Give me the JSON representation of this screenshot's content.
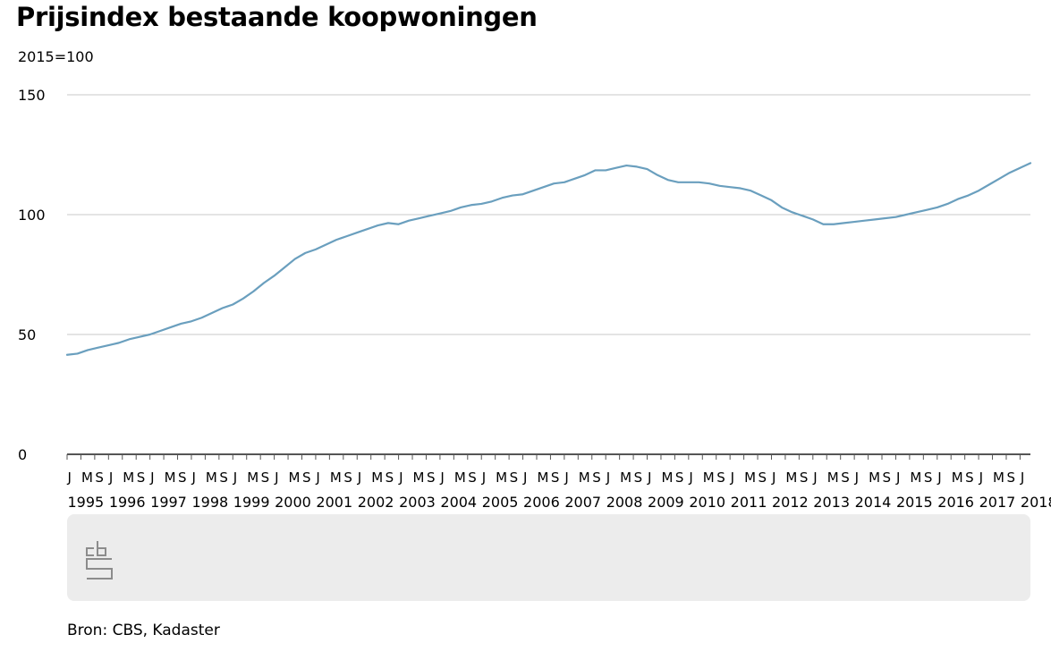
{
  "chart_data": {
    "type": "line",
    "title": "Prijsindex bestaande koopwoningen",
    "subtitle": "2015=100",
    "source": "Bron: CBS, Kadaster",
    "ylim": [
      0,
      150
    ],
    "yticks": [
      0,
      50,
      100,
      150
    ],
    "xlim": [
      "1995-01",
      "2018-04"
    ],
    "grid": true,
    "month_tick_labels": [
      "J",
      "M",
      "S"
    ],
    "year_labels": [
      "1995",
      "1996",
      "1997",
      "1998",
      "1999",
      "2000",
      "2001",
      "2002",
      "2003",
      "2004",
      "2005",
      "2006",
      "2007",
      "2008",
      "2009",
      "2010",
      "2011",
      "2012",
      "2013",
      "2014",
      "2015",
      "2016",
      "2017",
      "2018"
    ],
    "last_partial_year_tick_labels": [
      "J"
    ],
    "colors": {
      "line": "#6a9fbe",
      "axis": "#555555",
      "grid": "#c8c8c8",
      "footer_band": "#ececec",
      "logo": "#8c8c8c"
    },
    "logo_icon": "cbs-logo-icon",
    "series": [
      {
        "points": [
          [
            "1995-01",
            41.5
          ],
          [
            "1995-04",
            42.0
          ],
          [
            "1995-07",
            43.5
          ],
          [
            "1995-10",
            44.5
          ],
          [
            "1996-01",
            45.5
          ],
          [
            "1996-04",
            46.5
          ],
          [
            "1996-07",
            48.0
          ],
          [
            "1996-10",
            49.0
          ],
          [
            "1997-01",
            50.0
          ],
          [
            "1997-04",
            51.5
          ],
          [
            "1997-07",
            53.0
          ],
          [
            "1997-10",
            54.5
          ],
          [
            "1998-01",
            55.5
          ],
          [
            "1998-04",
            57.0
          ],
          [
            "1998-07",
            59.0
          ],
          [
            "1998-10",
            61.0
          ],
          [
            "1999-01",
            62.5
          ],
          [
            "1999-04",
            65.0
          ],
          [
            "1999-07",
            68.0
          ],
          [
            "1999-10",
            71.5
          ],
          [
            "2000-01",
            74.5
          ],
          [
            "2000-04",
            78.0
          ],
          [
            "2000-07",
            81.5
          ],
          [
            "2000-10",
            84.0
          ],
          [
            "2001-01",
            85.5
          ],
          [
            "2001-04",
            87.5
          ],
          [
            "2001-07",
            89.5
          ],
          [
            "2001-10",
            91.0
          ],
          [
            "2002-01",
            92.5
          ],
          [
            "2002-04",
            94.0
          ],
          [
            "2002-07",
            95.5
          ],
          [
            "2002-10",
            96.5
          ],
          [
            "2003-01",
            96.0
          ],
          [
            "2003-04",
            97.5
          ],
          [
            "2003-07",
            98.5
          ],
          [
            "2003-10",
            99.5
          ],
          [
            "2004-01",
            100.5
          ],
          [
            "2004-04",
            101.5
          ],
          [
            "2004-07",
            103.0
          ],
          [
            "2004-10",
            104.0
          ],
          [
            "2005-01",
            104.5
          ],
          [
            "2005-04",
            105.5
          ],
          [
            "2005-07",
            107.0
          ],
          [
            "2005-10",
            108.0
          ],
          [
            "2006-01",
            108.5
          ],
          [
            "2006-04",
            110.0
          ],
          [
            "2006-07",
            111.5
          ],
          [
            "2006-10",
            113.0
          ],
          [
            "2007-01",
            113.5
          ],
          [
            "2007-04",
            115.0
          ],
          [
            "2007-07",
            116.5
          ],
          [
            "2007-10",
            118.5
          ],
          [
            "2008-01",
            118.5
          ],
          [
            "2008-04",
            119.5
          ],
          [
            "2008-07",
            120.5
          ],
          [
            "2008-10",
            120.0
          ],
          [
            "2009-01",
            119.0
          ],
          [
            "2009-04",
            116.5
          ],
          [
            "2009-07",
            114.5
          ],
          [
            "2009-10",
            113.5
          ],
          [
            "2010-01",
            113.5
          ],
          [
            "2010-04",
            113.5
          ],
          [
            "2010-07",
            113.0
          ],
          [
            "2010-10",
            112.0
          ],
          [
            "2011-01",
            111.5
          ],
          [
            "2011-04",
            111.0
          ],
          [
            "2011-07",
            110.0
          ],
          [
            "2011-10",
            108.0
          ],
          [
            "2012-01",
            106.0
          ],
          [
            "2012-04",
            103.0
          ],
          [
            "2012-07",
            101.0
          ],
          [
            "2012-10",
            99.5
          ],
          [
            "2013-01",
            98.0
          ],
          [
            "2013-04",
            96.0
          ],
          [
            "2013-07",
            96.0
          ],
          [
            "2013-10",
            96.5
          ],
          [
            "2014-01",
            97.0
          ],
          [
            "2014-04",
            97.5
          ],
          [
            "2014-07",
            98.0
          ],
          [
            "2014-10",
            98.5
          ],
          [
            "2015-01",
            99.0
          ],
          [
            "2015-04",
            100.0
          ],
          [
            "2015-07",
            101.0
          ],
          [
            "2015-10",
            102.0
          ],
          [
            "2016-01",
            103.0
          ],
          [
            "2016-04",
            104.5
          ],
          [
            "2016-07",
            106.5
          ],
          [
            "2016-10",
            108.0
          ],
          [
            "2017-01",
            110.0
          ],
          [
            "2017-04",
            112.5
          ],
          [
            "2017-07",
            115.0
          ],
          [
            "2017-10",
            117.5
          ],
          [
            "2018-01",
            119.5
          ],
          [
            "2018-04",
            121.5
          ]
        ]
      }
    ]
  }
}
